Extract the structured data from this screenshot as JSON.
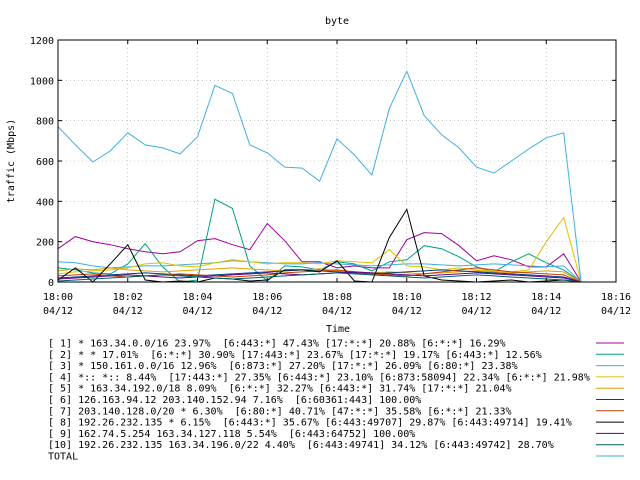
{
  "chart_data": {
    "type": "line",
    "title": "byte",
    "ylabel": "traffic (Mbps)",
    "xlabel": "Time",
    "ylim": [
      0,
      1200
    ],
    "xlim": [
      0,
      16
    ],
    "yticks": [
      "0",
      "200",
      "400",
      "600",
      "800",
      "1000",
      "1200"
    ],
    "xticks": [
      {
        "time": "18:00",
        "date": "04/12"
      },
      {
        "time": "18:02",
        "date": "04/12"
      },
      {
        "time": "18:04",
        "date": "04/12"
      },
      {
        "time": "18:06",
        "date": "04/12"
      },
      {
        "time": "18:08",
        "date": "04/12"
      },
      {
        "time": "18:10",
        "date": "04/12"
      },
      {
        "time": "18:12",
        "date": "04/12"
      },
      {
        "time": "18:14",
        "date": "04/12"
      },
      {
        "time": "18:16",
        "date": "04/12"
      }
    ],
    "x": [
      0,
      0.5,
      1,
      1.5,
      2,
      2.5,
      3,
      3.5,
      4,
      4.5,
      5,
      5.5,
      6,
      6.5,
      7,
      7.5,
      8,
      8.5,
      9,
      9.5,
      10,
      10.5,
      11,
      11.5,
      12,
      12.5,
      13,
      13.5,
      14,
      14.5,
      15
    ],
    "series": [
      {
        "name": "[ 1] * 163.34.0.0/16 23.97%  [6:443:*] 47.43% [17:*:*] 20.88% [6:*:*] 16.29%",
        "color": "#a000a0",
        "values": [
          165,
          225,
          200,
          185,
          165,
          150,
          140,
          150,
          205,
          215,
          185,
          160,
          290,
          205,
          100,
          100,
          70,
          80,
          70,
          70,
          210,
          245,
          240,
          180,
          105,
          130,
          110,
          75,
          75,
          140,
          0
        ]
      },
      {
        "name": "[ 2] * * 17.01%  [6:*:*] 30.90% [17:443:*] 23.67% [17:*:*] 19.17% [6:443:*] 12.56%",
        "color": "#00a080",
        "values": [
          70,
          60,
          45,
          40,
          90,
          190,
          75,
          0,
          10,
          410,
          365,
          80,
          5,
          80,
          75,
          60,
          100,
          90,
          55,
          100,
          110,
          180,
          165,
          125,
          75,
          50,
          100,
          140,
          95,
          60,
          0
        ]
      },
      {
        "name": "[ 3] * 150.161.0.0/16 12.96%  [6:873:*] 27.20% [17:*:*] 26.09% [6:80:*] 23.38%",
        "color": "#40b0e0",
        "values": [
          100,
          95,
          80,
          70,
          75,
          80,
          80,
          85,
          90,
          95,
          105,
          100,
          95,
          90,
          90,
          95,
          90,
          85,
          80,
          85,
          90,
          90,
          85,
          80,
          85,
          90,
          85,
          80,
          75,
          80,
          0
        ]
      },
      {
        "name": "[ 4] *:: *:: 8.44%  [17:443:*] 27.35% [6:443:*] 23.10% [6:873:58094] 22.34% [6:*:*] 21.98%",
        "color": "#e0c000",
        "values": [
          40,
          50,
          55,
          60,
          70,
          90,
          95,
          80,
          75,
          95,
          110,
          100,
          90,
          95,
          95,
          90,
          105,
          100,
          95,
          160,
          80,
          75,
          60,
          70,
          60,
          55,
          50,
          60,
          200,
          320,
          0
        ]
      },
      {
        "name": "[ 5] * 163.34.192.0/18 8.09%  [6:*:*] 32.27% [6:443:*] 31.74% [17:*:*] 21.04%",
        "color": "#e0a000",
        "values": [
          55,
          65,
          60,
          70,
          60,
          55,
          50,
          55,
          60,
          65,
          70,
          65,
          60,
          55,
          60,
          65,
          55,
          50,
          45,
          50,
          45,
          40,
          45,
          50,
          55,
          50,
          45,
          50,
          55,
          50,
          0
        ]
      },
      {
        "name": "[ 6] 126.163.94.12 203.140.152.94 7.16%  [6:60361:443] 100.00%",
        "color": "#004080",
        "values": [
          20,
          25,
          30,
          35,
          40,
          45,
          40,
          35,
          30,
          35,
          40,
          45,
          50,
          55,
          60,
          55,
          50,
          45,
          40,
          45,
          50,
          55,
          60,
          55,
          50,
          45,
          40,
          35,
          30,
          25,
          0
        ]
      },
      {
        "name": "[ 7] 203.140.128.0/20 * 6.30%  [6:80:*] 40.71% [47:*:*] 35.58% [6:*:*] 21.33%",
        "color": "#c04000",
        "values": [
          30,
          35,
          40,
          30,
          25,
          30,
          35,
          40,
          35,
          30,
          25,
          30,
          35,
          45,
          50,
          55,
          60,
          50,
          40,
          35,
          30,
          40,
          50,
          60,
          70,
          60,
          50,
          45,
          40,
          35,
          0
        ]
      },
      {
        "name": "[ 8] 192.26.232.135 * 6.15%  [6:443:*] 35.67% [6:443:49707] 29.87% [6:443:49714] 19.41%",
        "color": "#000000",
        "values": [
          10,
          70,
          0,
          90,
          185,
          10,
          0,
          5,
          0,
          20,
          15,
          5,
          10,
          60,
          60,
          50,
          105,
          5,
          0,
          220,
          360,
          30,
          10,
          5,
          0,
          5,
          10,
          0,
          5,
          10,
          0
        ]
      },
      {
        "name": "[ 9] 162.74.5.254 163.34.127.118 5.54%  [6:443:64752] 100.00%",
        "color": "#600090",
        "values": [
          15,
          20,
          25,
          30,
          35,
          30,
          25,
          20,
          25,
          30,
          35,
          40,
          45,
          40,
          35,
          40,
          45,
          50,
          45,
          40,
          35,
          30,
          35,
          40,
          45,
          40,
          35,
          30,
          25,
          20,
          0
        ]
      },
      {
        "name": "[10] 192.26.232.135 163.34.196.0/22 4.40%  [6:443:49741] 34.12% [6:443:49742] 28.70%",
        "color": "#006060",
        "values": [
          5,
          10,
          15,
          20,
          25,
          30,
          35,
          30,
          25,
          20,
          15,
          20,
          25,
          30,
          35,
          40,
          45,
          40,
          35,
          30,
          25,
          20,
          25,
          30,
          35,
          30,
          25,
          20,
          15,
          10,
          0
        ]
      },
      {
        "name": "TOTAL",
        "color": "#40b0e0",
        "values": [
          770,
          680,
          595,
          650,
          740,
          680,
          665,
          635,
          720,
          975,
          935,
          680,
          640,
          570,
          565,
          500,
          710,
          630,
          530,
          860,
          1045,
          825,
          730,
          665,
          570,
          540,
          600,
          660,
          715,
          740,
          0
        ]
      }
    ]
  }
}
